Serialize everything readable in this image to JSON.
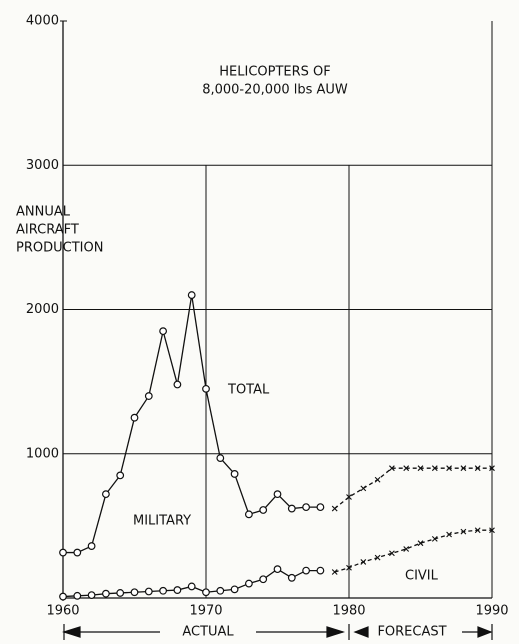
{
  "chart_data": {
    "type": "line",
    "title": [
      "HELICOPTERS OF",
      "8,000-20,000 lbs AUW"
    ],
    "ylabel": [
      "ANNUAL",
      "AIRCRAFT",
      "PRODUCTION"
    ],
    "annotations": [
      "TOTAL",
      "MILITARY",
      "CIVIL"
    ],
    "periods": [
      "ACTUAL",
      "FORECAST"
    ],
    "xlim": [
      1960,
      1990
    ],
    "xticks": [
      1960,
      1970,
      1980,
      1990
    ],
    "ylim": [
      0,
      4000
    ],
    "yticks": [
      1000,
      2000,
      3000,
      4000
    ],
    "grid": true,
    "series": [
      {
        "color": "#111",
        "marker": "circle",
        "dashed": false,
        "x": [
          1960,
          1961,
          1962,
          1963,
          1964,
          1965,
          1966,
          1967,
          1968,
          1969,
          1970,
          1971,
          1972,
          1973,
          1974,
          1975,
          1976,
          1977,
          1978
        ],
        "values": [
          315,
          315,
          360,
          720,
          850,
          1250,
          1400,
          1850,
          1480,
          2100,
          1450,
          970,
          860,
          580,
          610,
          720,
          620,
          630,
          630
        ]
      },
      {
        "color": "#111",
        "marker": "circle",
        "dashed": false,
        "x": [
          1960,
          1961,
          1962,
          1963,
          1964,
          1965,
          1966,
          1967,
          1968,
          1969,
          1970,
          1971,
          1972,
          1973,
          1974,
          1975,
          1976,
          1977,
          1978
        ],
        "values": [
          10,
          15,
          20,
          30,
          35,
          40,
          45,
          50,
          55,
          80,
          40,
          50,
          60,
          100,
          130,
          200,
          140,
          190,
          190
        ]
      },
      {
        "color": "#111",
        "marker": "x",
        "dashed": true,
        "x": [
          1979,
          1980,
          1981,
          1982,
          1983,
          1984,
          1985,
          1986,
          1987,
          1988,
          1989,
          1990
        ],
        "values": [
          620,
          700,
          760,
          820,
          900,
          900,
          900,
          900,
          900,
          900,
          900,
          900
        ]
      },
      {
        "color": "#111",
        "marker": "x",
        "dashed": true,
        "x": [
          1979,
          1980,
          1981,
          1982,
          1983,
          1984,
          1985,
          1986,
          1987,
          1988,
          1989,
          1990
        ],
        "values": [
          180,
          210,
          250,
          280,
          310,
          340,
          380,
          410,
          440,
          460,
          470,
          470
        ]
      }
    ]
  }
}
